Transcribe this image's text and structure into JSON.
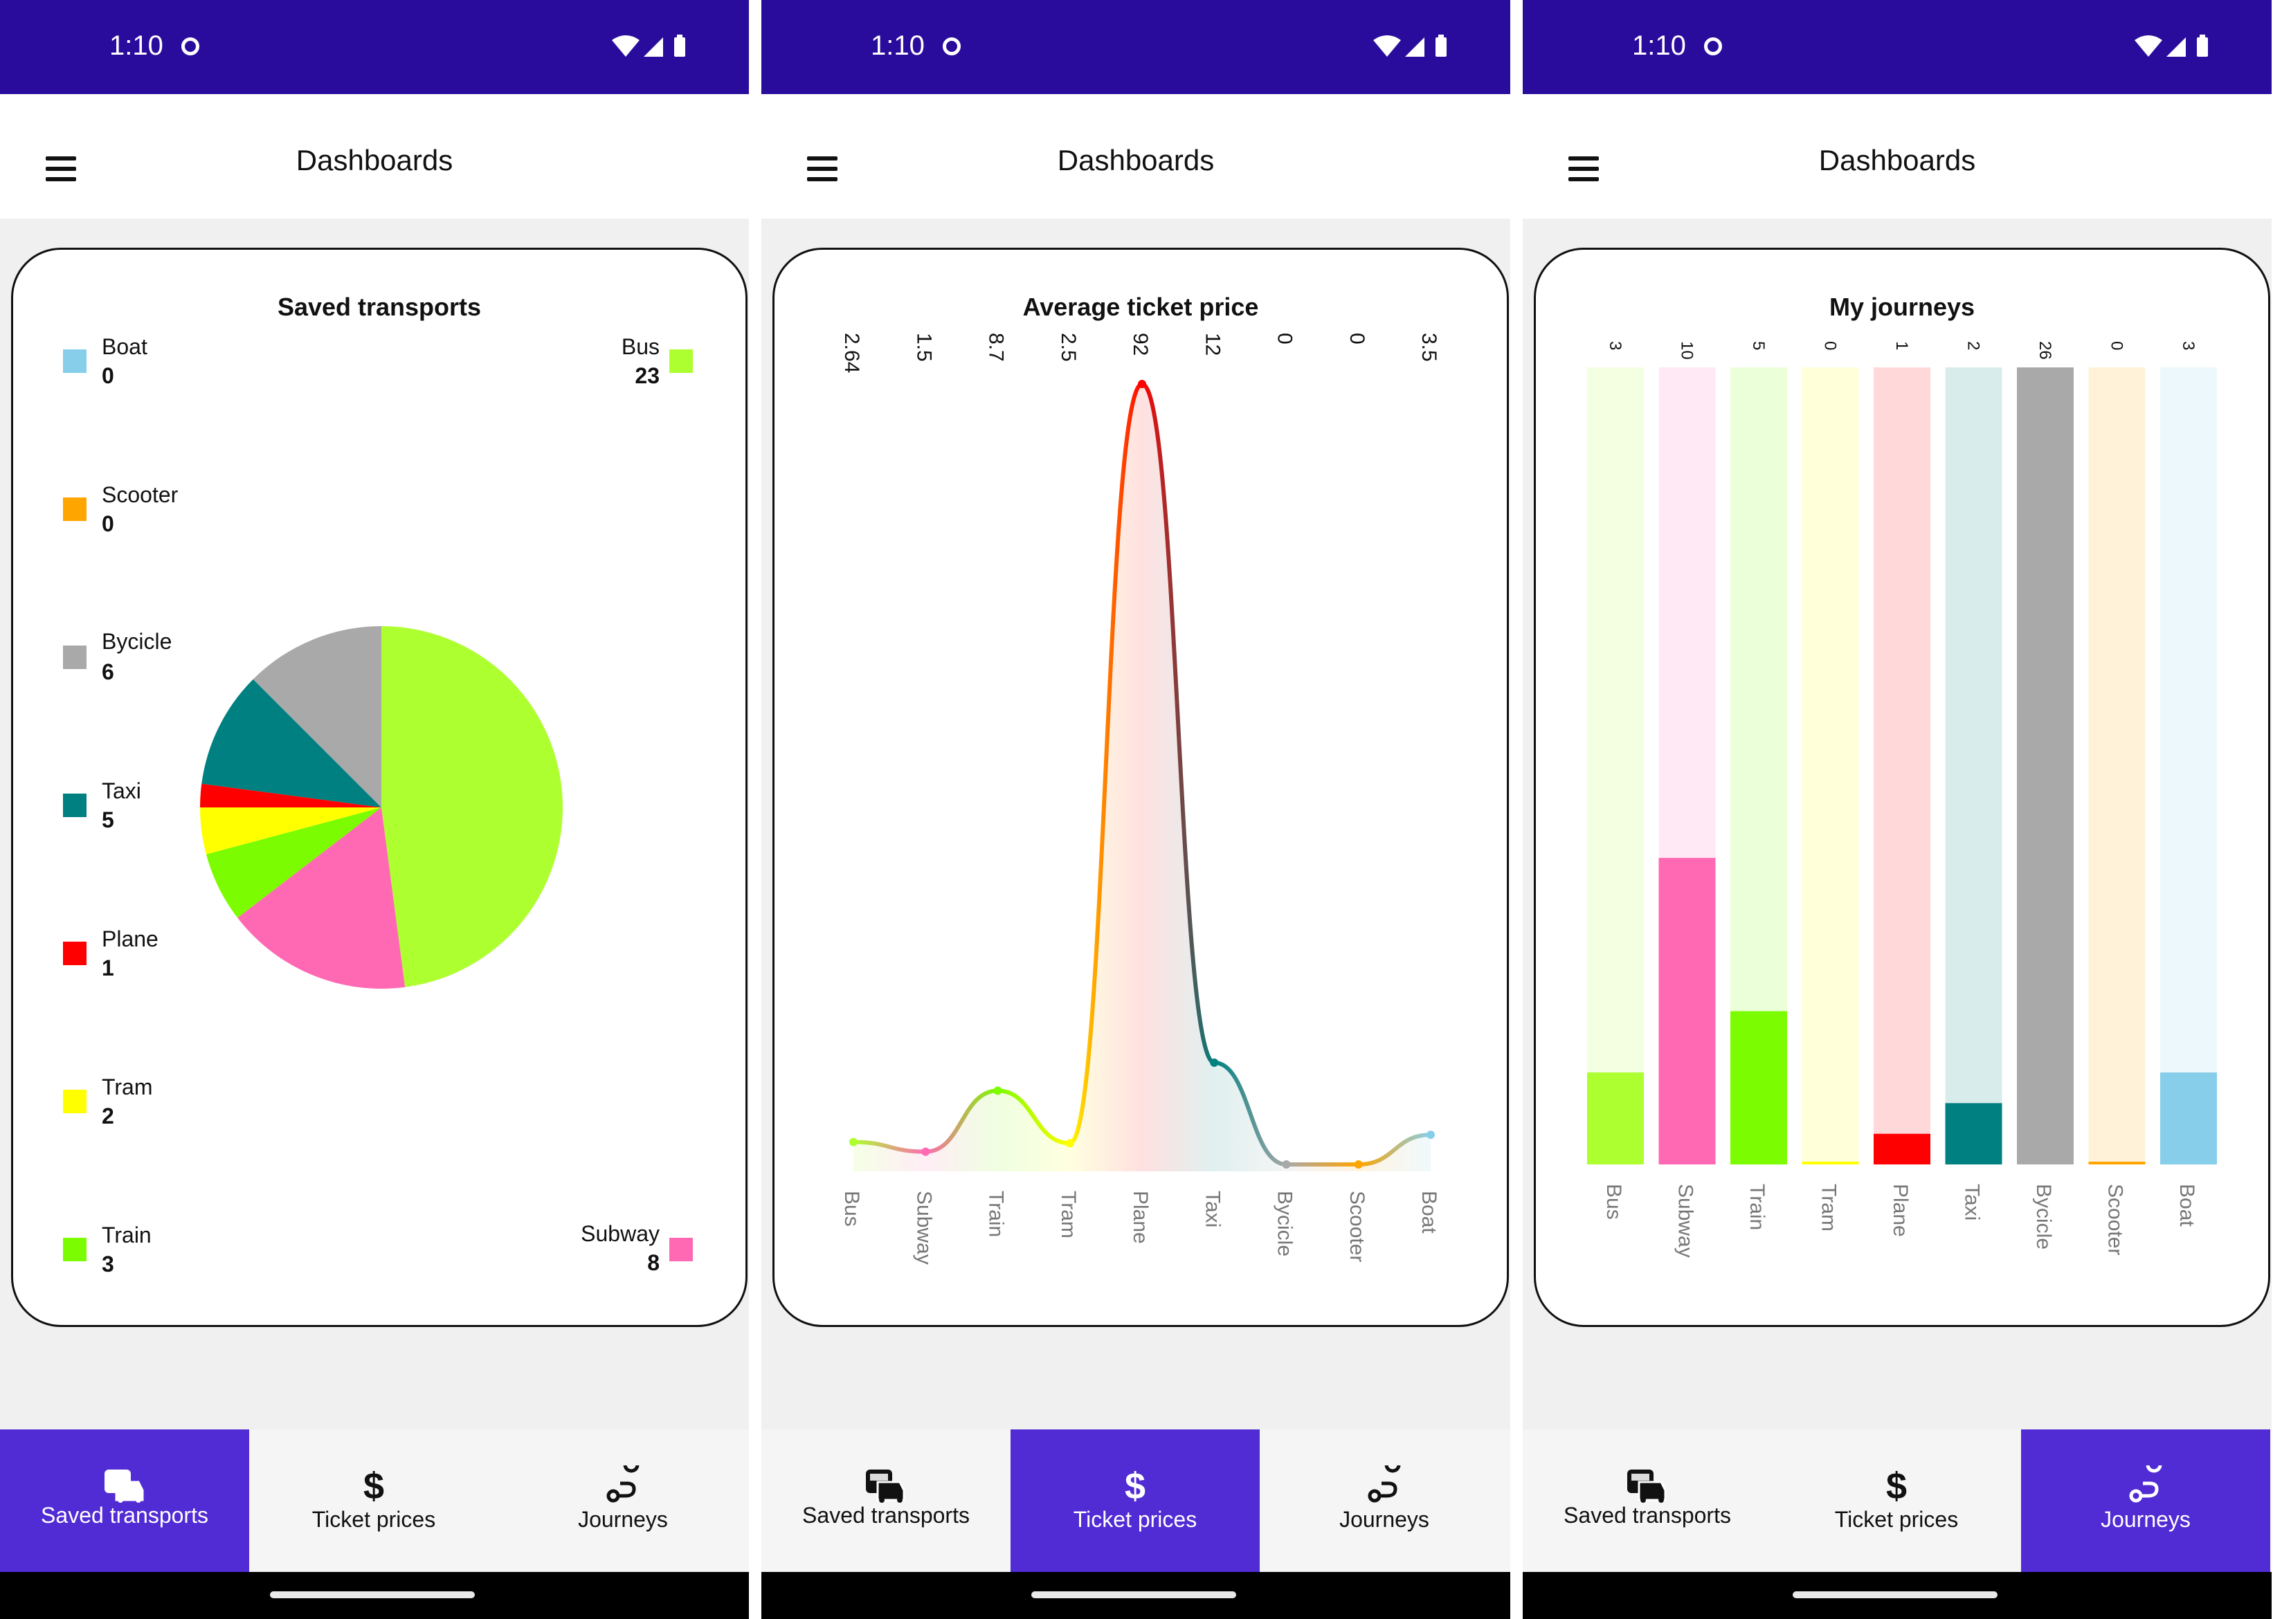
{
  "status_bar": {
    "time": "1:10",
    "color": "#2a0c9c"
  },
  "app_bar": {
    "title": "Dashboards"
  },
  "nav": {
    "saved": {
      "label": "Saved transports",
      "icon": "bus-car-icon"
    },
    "tickets": {
      "label": "Ticket prices",
      "icon": "dollar-icon"
    },
    "journeys": {
      "label": "Journeys",
      "icon": "route-icon"
    },
    "active_color": "#512bd4"
  },
  "screens": [
    {
      "active_tab": "saved"
    },
    {
      "active_tab": "tickets"
    },
    {
      "active_tab": "journeys"
    }
  ],
  "chart_data": [
    {
      "type": "pie",
      "title": "Saved transports",
      "categories": [
        "Boat",
        "Scooter",
        "Bycicle",
        "Taxi",
        "Plane",
        "Tram",
        "Train",
        "Bus",
        "Subway"
      ],
      "values": [
        0,
        0,
        6,
        5,
        1,
        2,
        3,
        23,
        8
      ],
      "colors": [
        "#87ceeb",
        "#ffa500",
        "#a9a9a9",
        "#008080",
        "#ff0000",
        "#ffff00",
        "#7cfc00",
        "#adff2f",
        "#ff69b4"
      ],
      "legend": [
        {
          "label": "Boat",
          "value": "0",
          "color": "#87ceeb"
        },
        {
          "label": "Scooter",
          "value": "0",
          "color": "#ffa500"
        },
        {
          "label": "Bycicle",
          "value": "6",
          "color": "#a9a9a9"
        },
        {
          "label": "Taxi",
          "value": "5",
          "color": "#008080"
        },
        {
          "label": "Plane",
          "value": "1",
          "color": "#ff0000"
        },
        {
          "label": "Tram",
          "value": "2",
          "color": "#ffff00"
        },
        {
          "label": "Train",
          "value": "3",
          "color": "#7cfc00"
        },
        {
          "label": "Bus",
          "value": "23",
          "color": "#adff2f"
        },
        {
          "label": "Subway",
          "value": "8",
          "color": "#ff69b4"
        }
      ]
    },
    {
      "type": "line",
      "title": "Average ticket price",
      "categories": [
        "Bus",
        "Subway",
        "Train",
        "Tram",
        "Plane",
        "Taxi",
        "Bycicle",
        "Scooter",
        "Boat"
      ],
      "values": [
        2.64,
        1.5,
        8.7,
        2.5,
        92,
        12,
        0,
        0,
        3.5
      ],
      "value_labels": [
        "2.64",
        "1.5",
        "8.7",
        "2.5",
        "92",
        "12",
        "0",
        "0",
        "3.5"
      ],
      "colors": [
        "#adff2f",
        "#ff69b4",
        "#7cfc00",
        "#ffff00",
        "#ff0000",
        "#008080",
        "#a9a9a9",
        "#ffa500",
        "#87ceeb"
      ],
      "ylim": [
        0,
        92
      ]
    },
    {
      "type": "bar",
      "title": "My journeys",
      "categories": [
        "Bus",
        "Subway",
        "Train",
        "Tram",
        "Plane",
        "Taxi",
        "Bycicle",
        "Scooter",
        "Boat"
      ],
      "values": [
        3,
        10,
        5,
        0,
        1,
        2,
        26,
        0,
        3
      ],
      "value_labels": [
        "3",
        "10",
        "5",
        "0",
        "1",
        "2",
        "26",
        "0",
        "3"
      ],
      "colors": [
        "#adff2f",
        "#ff69b4",
        "#7cfc00",
        "#ffff00",
        "#ff0000",
        "#008080",
        "#a9a9a9",
        "#ffa500",
        "#87ceeb"
      ],
      "ylim": [
        0,
        26
      ]
    }
  ]
}
